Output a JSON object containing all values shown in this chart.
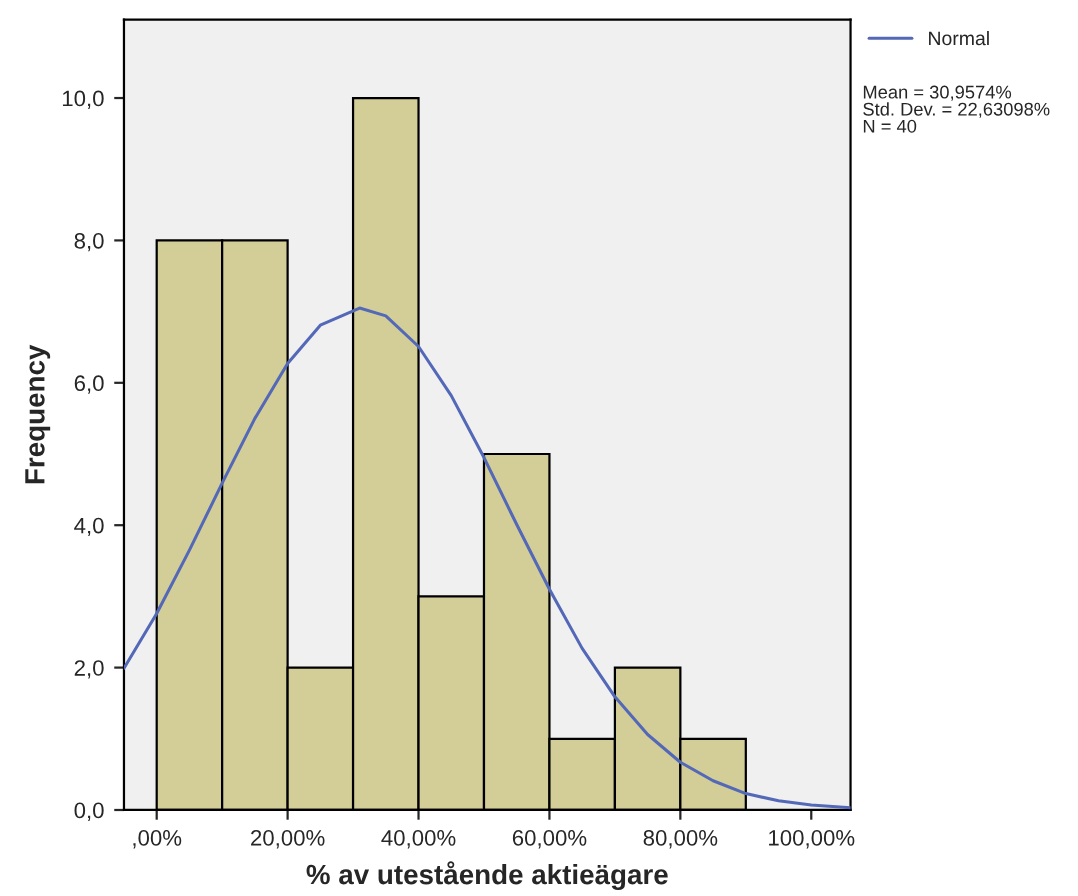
{
  "chart_data": {
    "type": "histogram",
    "xlabel": "% av utestående aktieägare",
    "ylabel": "Frequency",
    "bins": [
      0,
      10,
      20,
      30,
      40,
      50,
      60,
      70,
      80,
      90
    ],
    "series": [
      {
        "color": "#d3ce98",
        "values": [
          8,
          8,
          2,
          10,
          3,
          5,
          1,
          2,
          1
        ]
      },
      {
        "type": "line",
        "name": "Normal",
        "color": "#5468b8",
        "x": [
          -5,
          0,
          5,
          10,
          15,
          20,
          25,
          31,
          35,
          40,
          45,
          50,
          55,
          60,
          65,
          70,
          75,
          80,
          85,
          90,
          95,
          100,
          106
        ],
        "values": [
          1.99,
          2.76,
          3.65,
          4.59,
          5.5,
          6.27,
          6.81,
          7.05,
          6.94,
          6.51,
          5.82,
          4.95,
          4.01,
          3.1,
          2.27,
          1.59,
          1.06,
          0.67,
          0.41,
          0.23,
          0.13,
          0.07,
          0.03
        ]
      }
    ],
    "xlim": [
      -5,
      106
    ],
    "ylim": [
      0,
      11.1
    ],
    "xticks": [
      {
        "value": 0,
        "label": ",00%"
      },
      {
        "value": 20,
        "label": "20,00%"
      },
      {
        "value": 40,
        "label": "40,00%"
      },
      {
        "value": 60,
        "label": "60,00%"
      },
      {
        "value": 80,
        "label": "80,00%"
      },
      {
        "value": 100,
        "label": "100,00%"
      }
    ],
    "yticks": [
      {
        "value": 0,
        "label": "0,0"
      },
      {
        "value": 2,
        "label": "2,0"
      },
      {
        "value": 4,
        "label": "4,0"
      },
      {
        "value": 6,
        "label": "6,0"
      },
      {
        "value": 8,
        "label": "8,0"
      },
      {
        "value": 10,
        "label": "10,0"
      }
    ],
    "grid": false,
    "legend": "top right",
    "annotations": [
      "Mean = 30,9574%\nStd. Dev. = 22,63098%\nN = 40"
    ]
  }
}
